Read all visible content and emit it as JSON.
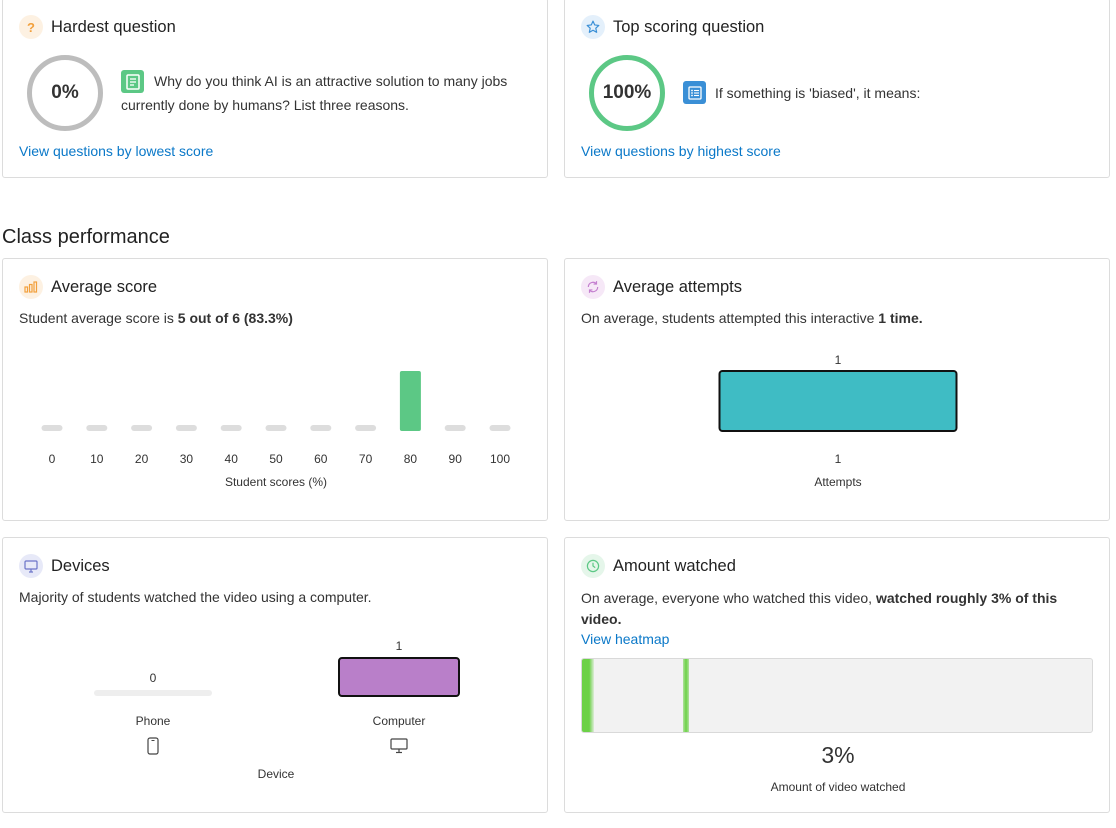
{
  "hardest": {
    "title": "Hardest question",
    "icon": "question-mark-icon",
    "percent": "0%",
    "question_icon": "document-icon",
    "question": "Why do you think AI is an attractive solution to many jobs currently done by humans? List three reasons.",
    "link": "View questions by lowest score"
  },
  "top": {
    "title": "Top scoring question",
    "icon": "star-icon",
    "percent": "100%",
    "question_icon": "list-icon",
    "question": "If something is 'biased', it means:",
    "link": "View questions by highest score"
  },
  "section_title": "Class performance",
  "average_score": {
    "title": "Average score",
    "icon": "bar-chart-icon",
    "summary_prefix": "Student average score is ",
    "summary_bold": "5 out of 6 (83.3%)",
    "chart_data": {
      "type": "bar",
      "categories": [
        "0",
        "10",
        "20",
        "30",
        "40",
        "50",
        "60",
        "70",
        "80",
        "90",
        "100"
      ],
      "values": [
        0,
        0,
        0,
        0,
        0,
        0,
        0,
        0,
        1,
        0,
        0
      ],
      "xlabel": "Student scores (%)",
      "bar_color": "#5cc885",
      "empty_color": "#dddddd"
    }
  },
  "average_attempts": {
    "title": "Average attempts",
    "icon": "refresh-icon",
    "summary_prefix": "On average, students attempted this interactive ",
    "summary_bold": "1 time.",
    "chart_data": {
      "type": "bar",
      "categories": [
        "1"
      ],
      "values": [
        1
      ],
      "data_labels": [
        "1"
      ],
      "xlabel": "Attempts",
      "bar_color": "#3fbcc4"
    }
  },
  "devices": {
    "title": "Devices",
    "icon": "monitor-icon",
    "summary": "Majority of students watched the video using a computer.",
    "chart_data": {
      "type": "bar",
      "categories": [
        "Phone",
        "Computer"
      ],
      "values": [
        0,
        1
      ],
      "data_labels": [
        "0",
        "1"
      ],
      "category_icons": [
        "phone-icon",
        "computer-icon"
      ],
      "xlabel": "Device",
      "bar_color": "#b97fc9",
      "empty_color": "#eeeeee"
    }
  },
  "amount_watched": {
    "title": "Amount watched",
    "icon": "clock-icon",
    "summary_prefix": "On average, everyone who watched this video, ",
    "summary_bold": "watched roughly 3% of this video.",
    "link": "View heatmap",
    "percent": "3%",
    "caption": "Amount of video watched",
    "watched_fraction": 0.03,
    "heat_color": "#6cd147"
  }
}
